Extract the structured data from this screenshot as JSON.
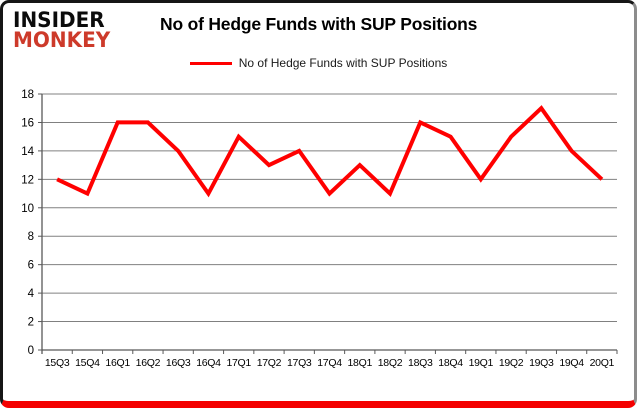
{
  "logo": {
    "line1": "INSIDER",
    "line2": "MONKEY",
    "line1_color": "#0b0b0b",
    "line2_color": "#cd3a2a"
  },
  "header": {
    "title": "No of Hedge Funds with SUP Positions"
  },
  "legend": {
    "label": "No of Hedge Funds with SUP Positions",
    "line_color": "#ff0000"
  },
  "colors": {
    "series_line": "#ff0000",
    "gridline": "#808080",
    "axis": "#595959",
    "card_border_dark": "#161616",
    "card_border_right": "#8c8c8c",
    "card_border_bottom": "#f40000",
    "background": "#ffffff"
  },
  "chart_data": {
    "type": "line",
    "title": "No of Hedge Funds with SUP Positions",
    "categories": [
      "15Q3",
      "15Q4",
      "16Q1",
      "16Q2",
      "16Q3",
      "16Q4",
      "17Q1",
      "17Q2",
      "17Q3",
      "17Q4",
      "18Q1",
      "18Q2",
      "18Q3",
      "18Q4",
      "19Q1",
      "19Q2",
      "19Q3",
      "19Q4",
      "20Q1"
    ],
    "values": [
      12,
      11,
      16,
      16,
      14,
      11,
      15,
      13,
      14,
      11,
      13,
      11,
      16,
      15,
      12,
      15,
      17,
      14,
      12
    ],
    "series": [
      {
        "name": "No of Hedge Funds with SUP Positions",
        "color": "#ff0000",
        "values": [
          12,
          11,
          16,
          16,
          14,
          11,
          15,
          13,
          14,
          11,
          13,
          11,
          16,
          15,
          12,
          15,
          17,
          14,
          12
        ]
      }
    ],
    "xlabel": "",
    "ylabel": "",
    "ylim": [
      0,
      18
    ],
    "ytick_step": 2,
    "grid": true,
    "legend_position": "top-center"
  }
}
